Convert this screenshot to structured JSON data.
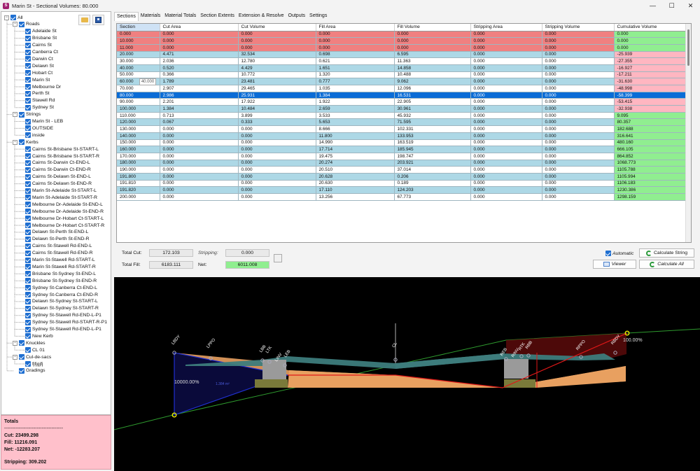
{
  "window": {
    "title": "Marin St - Sectional Volumes: 80.000",
    "app_icon_letter": "S",
    "minimize": "—",
    "maximize": "☐",
    "close": "✕"
  },
  "tree": {
    "items": [
      {
        "label": "All",
        "level": 0,
        "expander": "−"
      },
      {
        "label": "Roads",
        "level": 1,
        "expander": "−"
      },
      {
        "label": "Adelaide St",
        "level": 2
      },
      {
        "label": "Brisbane St",
        "level": 2
      },
      {
        "label": "Cairns St",
        "level": 2
      },
      {
        "label": "Canberra Ct",
        "level": 2
      },
      {
        "label": "Darwin Ct",
        "level": 2
      },
      {
        "label": "Delawn St",
        "level": 2
      },
      {
        "label": "Hobart Ct",
        "level": 2
      },
      {
        "label": "Marin St",
        "level": 2
      },
      {
        "label": "Melbourne Dr",
        "level": 2
      },
      {
        "label": "Perth St",
        "level": 2
      },
      {
        "label": "Stawell Rd",
        "level": 2
      },
      {
        "label": "Sydney St",
        "level": 2
      },
      {
        "label": "Strings",
        "level": 1,
        "expander": "−"
      },
      {
        "label": "Marin St - LEB",
        "level": 2
      },
      {
        "label": "OUTSIDE",
        "level": 2
      },
      {
        "label": "inside",
        "level": 2
      },
      {
        "label": "Kerbs",
        "level": 1,
        "expander": "−"
      },
      {
        "label": "Cairns St-Brisbane St-START-L",
        "level": 2
      },
      {
        "label": "Cairns St-Brisbane St-START-R",
        "level": 2
      },
      {
        "label": "Cairns St-Darwin Ct-END-L",
        "level": 2
      },
      {
        "label": "Cairns St-Darwin Ct-END-R",
        "level": 2
      },
      {
        "label": "Cairns St-Delawn St-END-L",
        "level": 2
      },
      {
        "label": "Cairns St-Delawn St-END-R",
        "level": 2
      },
      {
        "label": "Marin St-Adelaide St-START-L",
        "level": 2
      },
      {
        "label": "Marin St-Adelaide St-START-R",
        "level": 2
      },
      {
        "label": "Melbourne Dr-Adelaide St-END-L",
        "level": 2
      },
      {
        "label": "Melbourne Dr-Adelaide St-END-R",
        "level": 2
      },
      {
        "label": "Melbourne Dr-Hobart Ct-START-L",
        "level": 2
      },
      {
        "label": "Melbourne Dr-Hobart Ct-START-R",
        "level": 2
      },
      {
        "label": "Delawn St-Perth St-END-L",
        "level": 2
      },
      {
        "label": "Delawn St-Perth St-END-R",
        "level": 2
      },
      {
        "label": "Cairns St-Stawell Rd-END-L",
        "level": 2
      },
      {
        "label": "Cairns St-Stawell Rd-END-R",
        "level": 2
      },
      {
        "label": "Marin St-Stawell Rd-START-L",
        "level": 2
      },
      {
        "label": "Marin St-Stawell Rd-START-R",
        "level": 2
      },
      {
        "label": "Brisbane St-Sydney St-END-L",
        "level": 2
      },
      {
        "label": "Brisbane St-Sydney St-END-R",
        "level": 2
      },
      {
        "label": "Sydney St-Canberra Ct-END-L",
        "level": 2
      },
      {
        "label": "Sydney St-Canberra Ct-END-R",
        "level": 2
      },
      {
        "label": "Delawn St-Sydney St-START-L",
        "level": 2
      },
      {
        "label": "Delawn St-Sydney St-START-R",
        "level": 2
      },
      {
        "label": "Sydney St-Stawell Rd-END-L-P1",
        "level": 2
      },
      {
        "label": "Sydney St-Stawell Rd-START-R-P1",
        "level": 2
      },
      {
        "label": "Sydney St-Stawell Rd-END-L-P1",
        "level": 2
      },
      {
        "label": "New Kerb",
        "level": 2
      },
      {
        "label": "Knuckles",
        "level": 1,
        "expander": "−"
      },
      {
        "label": "CL 01",
        "level": 2
      },
      {
        "label": "Cul-de-sacs",
        "level": 1,
        "expander": "−"
      },
      {
        "label": "fjfjgjfj",
        "level": 2
      },
      {
        "label": "Gradings",
        "level": 1
      }
    ]
  },
  "totals": {
    "heading": "Totals",
    "divider": "------------------------------------",
    "cut": "Cut: 23499.298",
    "fill": "Fill: 11216.091",
    "net": "Net: -12283.207",
    "stripping": "Stripping: 309.202"
  },
  "tabs": [
    "Sections",
    "Materials",
    "Material Totals",
    "Section Extents",
    "Extension & Resolve",
    "Outputs",
    "Settings"
  ],
  "grid": {
    "columns": [
      "Section",
      "Cut Area",
      "Cut Volume",
      "Fill Area",
      "Fill Volume",
      "Stripping Area",
      "Stripping Volume",
      "Cumulative Volume"
    ],
    "rows": [
      {
        "style": "red",
        "cum": "green",
        "cells": [
          "0.000",
          "0.000",
          "0.000",
          "0.000",
          "0.000",
          "0.000",
          "0.000",
          "0.000"
        ]
      },
      {
        "style": "red",
        "cum": "green",
        "cells": [
          "10.000",
          "0.000",
          "0.000",
          "0.000",
          "0.000",
          "0.000",
          "0.000",
          "0.000"
        ]
      },
      {
        "style": "red",
        "cum": "green",
        "cells": [
          "11.000",
          "0.000",
          "0.000",
          "0.000",
          "0.000",
          "0.000",
          "0.000",
          "0.000"
        ]
      },
      {
        "style": "blue",
        "cum": "pink",
        "cells": [
          "20.000",
          "4.471",
          "32.534",
          "0.698",
          "6.595",
          "0.000",
          "0.000",
          "-25.939"
        ]
      },
      {
        "style": "white",
        "cum": "pink",
        "cells": [
          "30.000",
          "2.036",
          "12.780",
          "0.621",
          "11.363",
          "0.000",
          "0.000",
          "-27.355"
        ]
      },
      {
        "style": "blue",
        "cum": "pink",
        "cells": [
          "40.000",
          "0.520",
          "4.429",
          "1.651",
          "14.858",
          "0.000",
          "0.000",
          "-16.927"
        ]
      },
      {
        "style": "white",
        "cum": "pink",
        "cells": [
          "50.000",
          "0.366",
          "10.772",
          "1.320",
          "10.488",
          "0.000",
          "0.000",
          "-17.211"
        ]
      },
      {
        "style": "blue",
        "cum": "pink",
        "cells": [
          "60.000",
          "1.789",
          "23.481",
          "0.777",
          "9.062",
          "0.000",
          "0.000",
          "-31.630"
        ]
      },
      {
        "style": "white",
        "cum": "pink",
        "cells": [
          "70.000",
          "2.907",
          "29.465",
          "1.035",
          "12.096",
          "0.000",
          "0.000",
          "-48.998"
        ]
      },
      {
        "style": "selected",
        "cum": "pink",
        "cells": [
          "80.000",
          "2.986",
          "25.931",
          "1.384",
          "16.531",
          "0.000",
          "0.000",
          "-58.399"
        ]
      },
      {
        "style": "white",
        "cum": "pink",
        "cells": [
          "90.000",
          "2.201",
          "17.922",
          "1.922",
          "22.905",
          "0.000",
          "0.000",
          "-53.415"
        ]
      },
      {
        "style": "blue",
        "cum": "pink",
        "cells": [
          "100.000",
          "1.384",
          "10.484",
          "2.659",
          "30.961",
          "0.000",
          "0.000",
          "-32.938"
        ]
      },
      {
        "style": "white",
        "cum": "green",
        "cells": [
          "110.000",
          "0.713",
          "3.899",
          "3.533",
          "45.932",
          "0.000",
          "0.000",
          "9.095"
        ]
      },
      {
        "style": "blue",
        "cum": "green",
        "cells": [
          "120.000",
          "0.067",
          "0.333",
          "5.653",
          "71.595",
          "0.000",
          "0.000",
          "80.357"
        ]
      },
      {
        "style": "white",
        "cum": "green",
        "cells": [
          "130.000",
          "0.000",
          "0.000",
          "8.666",
          "102.331",
          "0.000",
          "0.000",
          "182.688"
        ]
      },
      {
        "style": "blue",
        "cum": "green",
        "cells": [
          "140.000",
          "0.000",
          "0.000",
          "11.800",
          "133.953",
          "0.000",
          "0.000",
          "316.641"
        ]
      },
      {
        "style": "white",
        "cum": "green",
        "cells": [
          "150.000",
          "0.000",
          "0.000",
          "14.990",
          "163.519",
          "0.000",
          "0.000",
          "480.160"
        ]
      },
      {
        "style": "blue",
        "cum": "green",
        "cells": [
          "160.000",
          "0.000",
          "0.000",
          "17.714",
          "185.945",
          "0.000",
          "0.000",
          "666.105"
        ]
      },
      {
        "style": "white",
        "cum": "green",
        "cells": [
          "170.000",
          "0.000",
          "0.000",
          "19.475",
          "198.747",
          "0.000",
          "0.000",
          "864.852"
        ]
      },
      {
        "style": "blue",
        "cum": "green",
        "cells": [
          "180.000",
          "0.000",
          "0.000",
          "20.274",
          "203.921",
          "0.000",
          "0.000",
          "1068.773"
        ]
      },
      {
        "style": "white",
        "cum": "green",
        "cells": [
          "190.000",
          "0.000",
          "0.000",
          "20.510",
          "37.014",
          "0.000",
          "0.000",
          "1105.788"
        ]
      },
      {
        "style": "blue",
        "cum": "green",
        "cells": [
          "191.800",
          "0.000",
          "0.000",
          "20.628",
          "0.206",
          "0.000",
          "0.000",
          "1105.994"
        ]
      },
      {
        "style": "white",
        "cum": "green",
        "cells": [
          "191.810",
          "0.000",
          "0.000",
          "20.630",
          "0.189",
          "0.000",
          "0.000",
          "1106.183"
        ]
      },
      {
        "style": "blue",
        "cum": "green",
        "cells": [
          "191.820",
          "0.000",
          "0.000",
          "17.110",
          "124.203",
          "0.000",
          "0.000",
          "1230.386"
        ]
      },
      {
        "style": "white",
        "cum": "green",
        "cells": [
          "200.000",
          "0.000",
          "0.000",
          "13.256",
          "67.773",
          "0.000",
          "0.000",
          "1298.159"
        ]
      }
    ],
    "tooltip": "40.000"
  },
  "summary": {
    "total_cut_label": "Total Cut:",
    "total_cut": "172.103",
    "total_fill_label": "Total Fill:",
    "total_fill": "6183.111",
    "stripping_label": "Stripping:",
    "stripping": "0.000",
    "net_label": "Net:",
    "net": "6011.008",
    "automatic_label": "Automatic",
    "calculate_string": "Calculate String",
    "viewer": "Viewer",
    "calculate_all": "Calculate All"
  },
  "viewer_labels": {
    "lbdy": "LBDY",
    "lppo": "LPPO",
    "lbb": "LBB",
    "ltk": "LTK",
    "linv": "LINV",
    "leb": "LEB",
    "cl": "CL",
    "reb": "REB",
    "rinv": "RINV",
    "rtk": "RTK",
    "rbb": "RBB",
    "rppo": "RPPO",
    "rbdy": "RBDY",
    "left_pct": "10000.00%",
    "right_pct": "100.00%",
    "area": "1.384 m²"
  },
  "colors": {
    "red_row": "#f08080",
    "blue_row": "#add8e6",
    "selected_row": "#0a6cd6",
    "positive_cum": "#90ee90",
    "negative_cum": "#ffb6c1",
    "fill_orange": "#e8a060"
  }
}
